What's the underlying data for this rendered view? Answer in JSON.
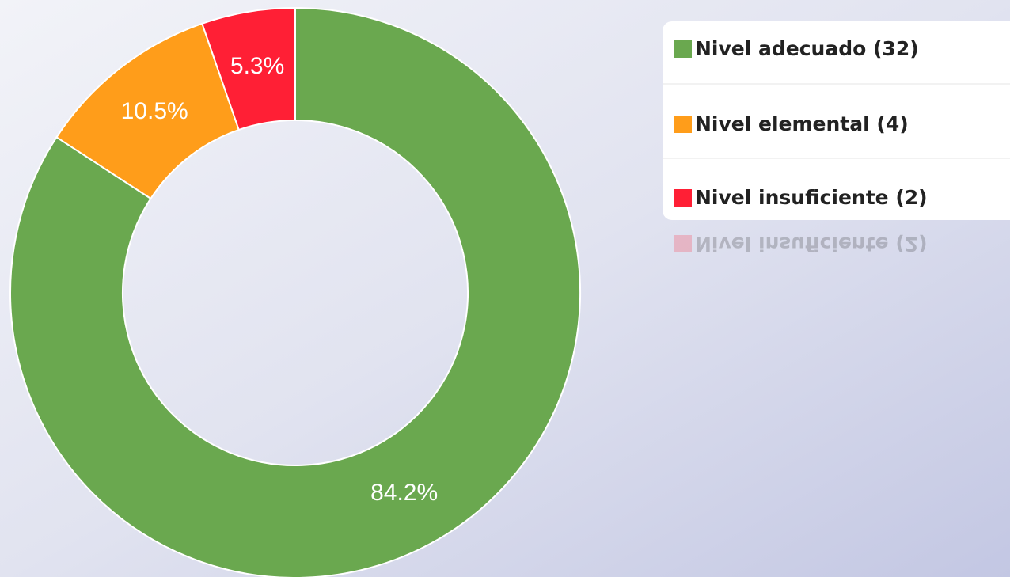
{
  "chart_data": {
    "type": "donut",
    "categories": [
      "Nivel adecuado (32)",
      "Nivel elemental (4)",
      "Nivel insuficiente (2)"
    ],
    "values": [
      84.2,
      10.5,
      5.3
    ],
    "value_labels": [
      "84.2%",
      "10.5%",
      "5.3%"
    ],
    "colors": [
      "#6aa84f",
      "#ff9d1a",
      "#ff1f35"
    ],
    "legend": "top-right"
  }
}
